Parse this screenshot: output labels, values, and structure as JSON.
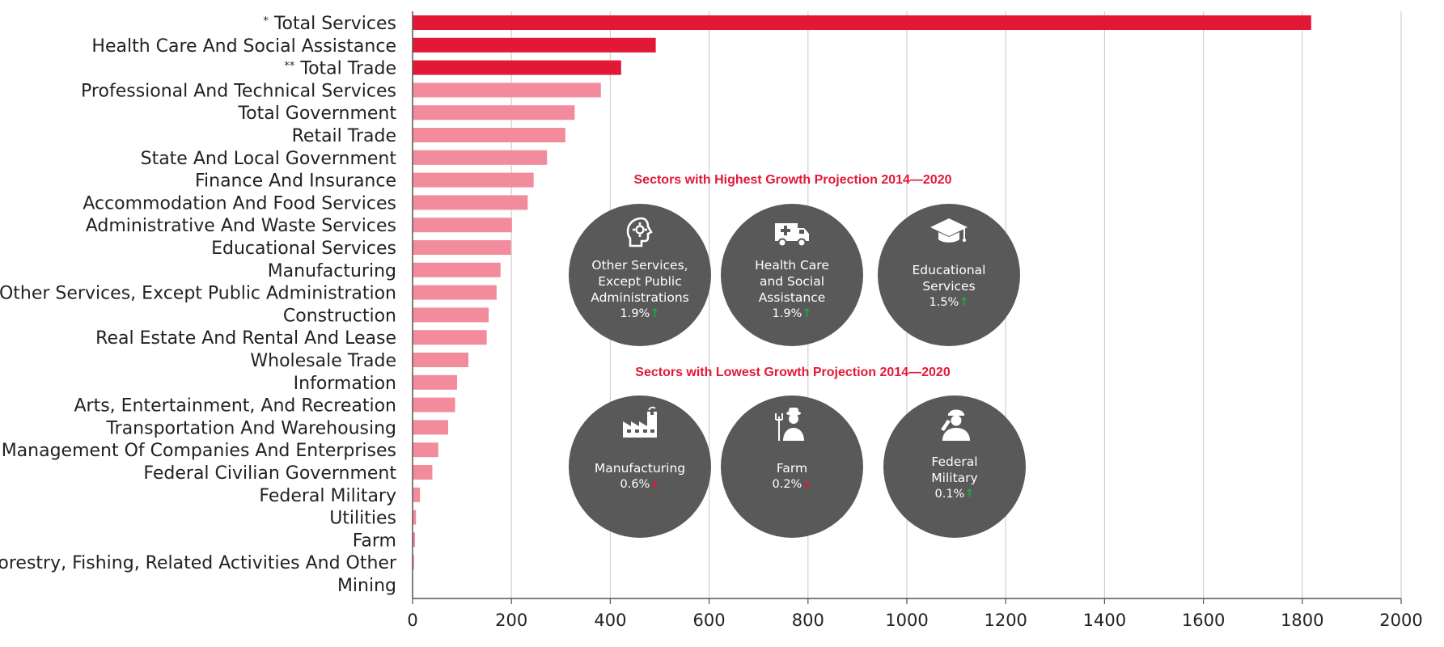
{
  "chart_data": {
    "type": "bar",
    "orientation": "horizontal",
    "categories": [
      {
        "label": "Total Services",
        "mark": "*",
        "value": 1818,
        "highlight": true
      },
      {
        "label": "Health Care And Social Assistance",
        "mark": "",
        "value": 492,
        "highlight": true
      },
      {
        "label": "Total Trade",
        "mark": "**",
        "value": 422,
        "highlight": true
      },
      {
        "label": "Professional And Technical Services",
        "mark": "",
        "value": 381,
        "highlight": false
      },
      {
        "label": "Total Government",
        "mark": "",
        "value": 328,
        "highlight": false
      },
      {
        "label": "Retail Trade",
        "mark": "",
        "value": 309,
        "highlight": false
      },
      {
        "label": "State And Local Government",
        "mark": "",
        "value": 272,
        "highlight": false
      },
      {
        "label": "Finance And Insurance",
        "mark": "",
        "value": 245,
        "highlight": false
      },
      {
        "label": "Accommodation And Food Services",
        "mark": "",
        "value": 233,
        "highlight": false
      },
      {
        "label": "Administrative And Waste Services",
        "mark": "",
        "value": 201,
        "highlight": false
      },
      {
        "label": "Educational Services",
        "mark": "",
        "value": 199,
        "highlight": false
      },
      {
        "label": "Manufacturing",
        "mark": "",
        "value": 178,
        "highlight": false
      },
      {
        "label": "Other Services, Except Public Administration",
        "mark": "",
        "value": 170,
        "highlight": false
      },
      {
        "label": "Construction",
        "mark": "",
        "value": 154,
        "highlight": false
      },
      {
        "label": "Real Estate And Rental And Lease",
        "mark": "",
        "value": 150,
        "highlight": false
      },
      {
        "label": "Wholesale Trade",
        "mark": "",
        "value": 113,
        "highlight": false
      },
      {
        "label": "Information",
        "mark": "",
        "value": 90,
        "highlight": false
      },
      {
        "label": "Arts, Entertainment, And Recreation",
        "mark": "",
        "value": 86,
        "highlight": false
      },
      {
        "label": "Transportation And Warehousing",
        "mark": "",
        "value": 72,
        "highlight": false
      },
      {
        "label": "Management Of Companies And Enterprises",
        "mark": "",
        "value": 52,
        "highlight": false
      },
      {
        "label": "Federal Civilian Government",
        "mark": "",
        "value": 40,
        "highlight": false
      },
      {
        "label": "Federal Military",
        "mark": "",
        "value": 15,
        "highlight": false
      },
      {
        "label": "Utilities",
        "mark": "",
        "value": 7,
        "highlight": false
      },
      {
        "label": "Farm",
        "mark": "",
        "value": 5,
        "highlight": false
      },
      {
        "label": "Forestry, Fishing, Related Activities And Other",
        "mark": "",
        "value": 3,
        "highlight": false
      },
      {
        "label": "Mining",
        "mark": "",
        "value": 0,
        "highlight": false
      }
    ],
    "xlim": [
      0,
      2000
    ],
    "xticks": [
      0,
      200,
      400,
      600,
      800,
      1000,
      1200,
      1400,
      1600,
      1800,
      2000
    ],
    "grid": "vertical",
    "colors": {
      "highlight": "#e31837",
      "normal": "#f28b9b",
      "grid": "#d0d0d0",
      "axis": "#555555"
    }
  },
  "panels": {
    "highest": {
      "title": "Sectors with Highest Growth Projection 2014—2020",
      "items": [
        {
          "icon": "head-gear-icon",
          "lines": [
            "Other Services,",
            "Except Public",
            "Administrations"
          ],
          "pct": "1.9%",
          "direction": "up"
        },
        {
          "icon": "ambulance-icon",
          "lines": [
            "Health Care",
            "and Social",
            "Assistance"
          ],
          "pct": "1.9%",
          "direction": "up"
        },
        {
          "icon": "graduation-cap-icon",
          "lines": [
            "Educational",
            "Services"
          ],
          "pct": "1.5%",
          "direction": "up"
        }
      ]
    },
    "lowest": {
      "title": "Sectors with Lowest Growth Projection 2014—2020",
      "items": [
        {
          "icon": "factory-icon",
          "lines": [
            "Manufacturing"
          ],
          "pct": "0.6%",
          "direction": "down"
        },
        {
          "icon": "farmer-icon",
          "lines": [
            "Farm"
          ],
          "pct": "0.2%",
          "direction": "down"
        },
        {
          "icon": "saluting-soldier-icon",
          "lines": [
            "Federal",
            "Military"
          ],
          "pct": "0.1%",
          "direction": "up"
        }
      ]
    }
  }
}
